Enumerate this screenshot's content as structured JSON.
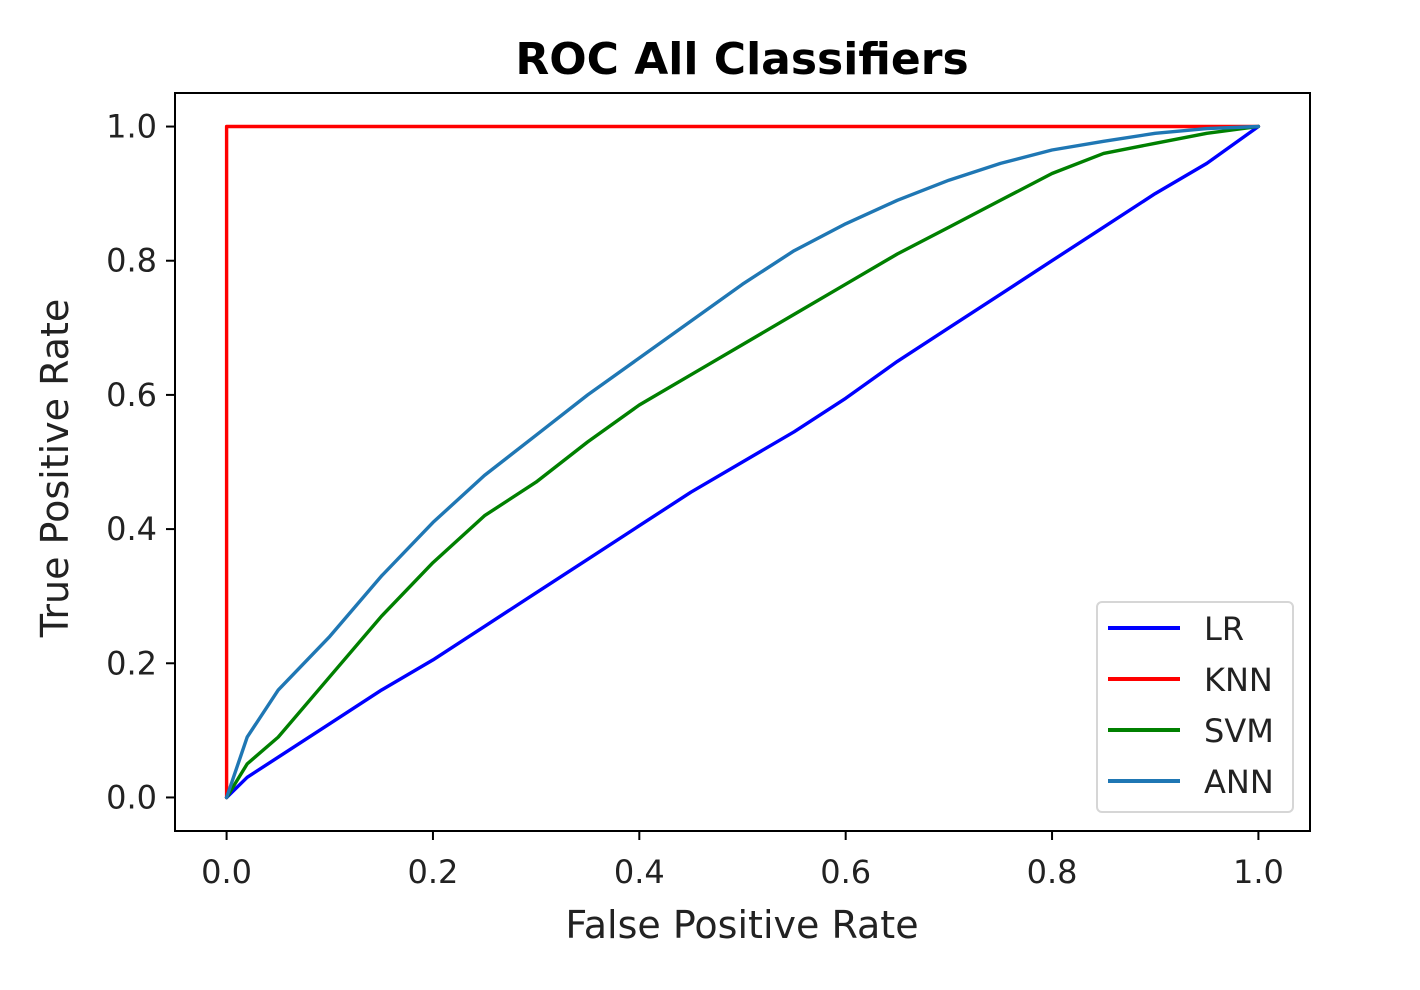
{
  "chart_data": {
    "type": "line",
    "title": "ROC All Classifiers",
    "xlabel": "False Positive Rate",
    "ylabel": "True Positive Rate",
    "xlim": [
      -0.05,
      1.05
    ],
    "ylim": [
      -0.05,
      1.05
    ],
    "xticks": [
      0.0,
      0.2,
      0.4,
      0.6,
      0.8,
      1.0
    ],
    "yticks": [
      0.0,
      0.2,
      0.4,
      0.6,
      0.8,
      1.0
    ],
    "xtick_labels": [
      "0.0",
      "0.2",
      "0.4",
      "0.6",
      "0.8",
      "1.0"
    ],
    "ytick_labels": [
      "0.0",
      "0.2",
      "0.4",
      "0.6",
      "0.8",
      "1.0"
    ],
    "grid": false,
    "legend_position": "lower-right",
    "series": [
      {
        "name": "LR",
        "color": "#0000ff",
        "x": [
          0,
          0.02,
          0.05,
          0.1,
          0.15,
          0.2,
          0.25,
          0.3,
          0.35,
          0.4,
          0.45,
          0.5,
          0.55,
          0.6,
          0.65,
          0.7,
          0.75,
          0.8,
          0.85,
          0.9,
          0.95,
          1.0
        ],
        "y": [
          0,
          0.03,
          0.06,
          0.11,
          0.16,
          0.205,
          0.255,
          0.305,
          0.355,
          0.405,
          0.455,
          0.5,
          0.545,
          0.595,
          0.65,
          0.7,
          0.75,
          0.8,
          0.85,
          0.9,
          0.945,
          1.0
        ]
      },
      {
        "name": "KNN",
        "color": "#ff0000",
        "x": [
          0,
          0,
          1.0
        ],
        "y": [
          0,
          1.0,
          1.0
        ]
      },
      {
        "name": "SVM",
        "color": "#008000",
        "x": [
          0,
          0.02,
          0.05,
          0.1,
          0.15,
          0.2,
          0.25,
          0.3,
          0.35,
          0.4,
          0.45,
          0.5,
          0.55,
          0.6,
          0.65,
          0.7,
          0.75,
          0.8,
          0.85,
          0.9,
          0.95,
          1.0
        ],
        "y": [
          0,
          0.05,
          0.09,
          0.18,
          0.27,
          0.35,
          0.42,
          0.47,
          0.53,
          0.585,
          0.63,
          0.675,
          0.72,
          0.765,
          0.81,
          0.85,
          0.89,
          0.93,
          0.96,
          0.975,
          0.99,
          1.0
        ]
      },
      {
        "name": "ANN",
        "color": "#1f77b4",
        "x": [
          0,
          0.02,
          0.05,
          0.1,
          0.15,
          0.2,
          0.25,
          0.3,
          0.35,
          0.4,
          0.45,
          0.5,
          0.55,
          0.6,
          0.65,
          0.7,
          0.75,
          0.8,
          0.85,
          0.9,
          0.95,
          1.0
        ],
        "y": [
          0,
          0.09,
          0.16,
          0.24,
          0.33,
          0.41,
          0.48,
          0.54,
          0.6,
          0.655,
          0.71,
          0.765,
          0.815,
          0.855,
          0.89,
          0.92,
          0.945,
          0.965,
          0.978,
          0.99,
          0.997,
          1.0
        ]
      }
    ]
  }
}
